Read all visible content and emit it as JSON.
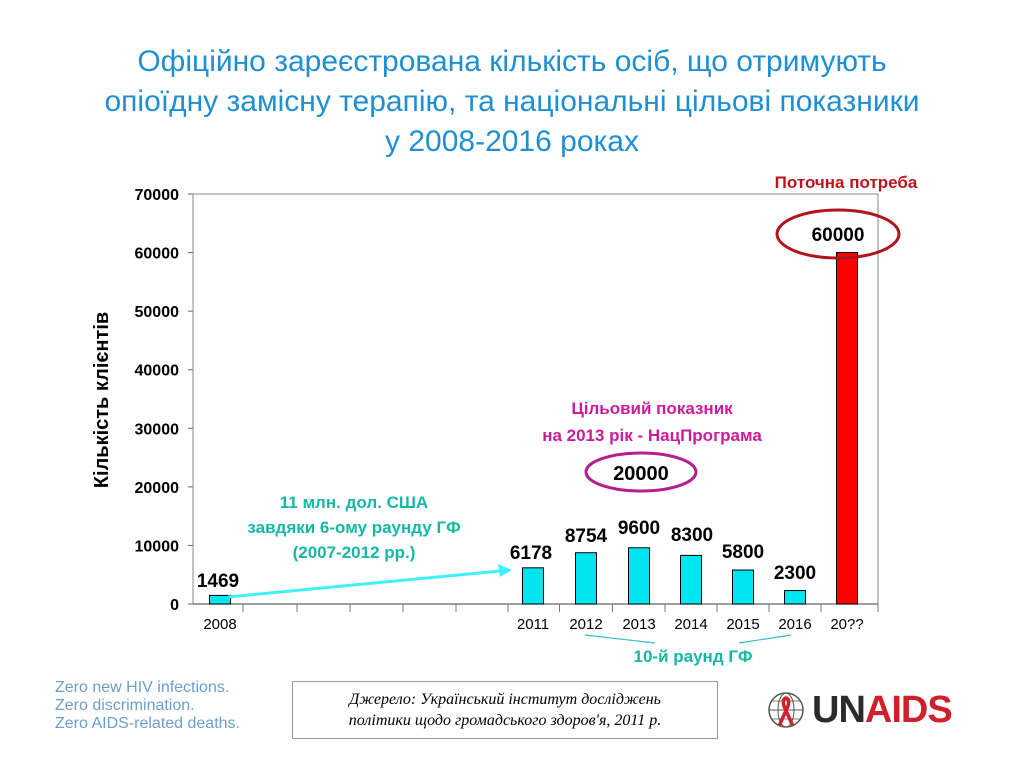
{
  "title_lines": [
    "Офіційно зареєстрована кількість осіб, що отримують",
    "опіоїдну замісну терапію, та національні цільові показники",
    "у 2008-2016 роках"
  ],
  "chart_data": {
    "type": "bar",
    "categories": [
      "2008",
      "2011",
      "2012",
      "2013",
      "2014",
      "2015",
      "2016",
      "20??"
    ],
    "values": [
      1469,
      6178,
      8754,
      9600,
      8300,
      5800,
      2300,
      60000
    ],
    "data_labels": [
      "1469",
      "6178",
      "8754",
      "9600",
      "8300",
      "5800",
      "2300",
      "60000"
    ],
    "bar_colors": [
      "#00e5f0",
      "#00e5f0",
      "#00e5f0",
      "#00e5f0",
      "#00e5f0",
      "#00e5f0",
      "#00e5f0",
      "#ff0000"
    ],
    "ylabel": "Кількість клієнтів",
    "ylim": [
      0,
      70000
    ],
    "yticks": [
      "0",
      "10000",
      "20000",
      "30000",
      "40000",
      "50000",
      "60000",
      "70000"
    ],
    "grid": false,
    "annotations": {
      "current_need": "Поточна потреба",
      "target_title": [
        "Цільовий показник",
        "на 2013 рік - НацПрограма"
      ],
      "target_value": "20000",
      "funding": [
        "11 млн. дол. США",
        "завдяки 6-ому раунду ГФ",
        "(2007-2012 рр.)"
      ],
      "round": "10-й раунд  ГФ"
    }
  },
  "colors": {
    "title": "#1f8fd4",
    "target": "#cc1c9c",
    "funding": "#16b7a5",
    "need": "#c0141c",
    "arrow": "#40f0f8"
  },
  "slogan": [
    "Zero new HIV infections.",
    "Zero discrimination.",
    "Zero AIDS-related deaths."
  ],
  "source": [
    "Джерело: Український інститут досліджень",
    "політики щодо громадського здоров'я, 2011  р."
  ],
  "logo": {
    "icon": "red-ribbon-globe-icon",
    "un": "UN",
    "aids": "AIDS"
  }
}
